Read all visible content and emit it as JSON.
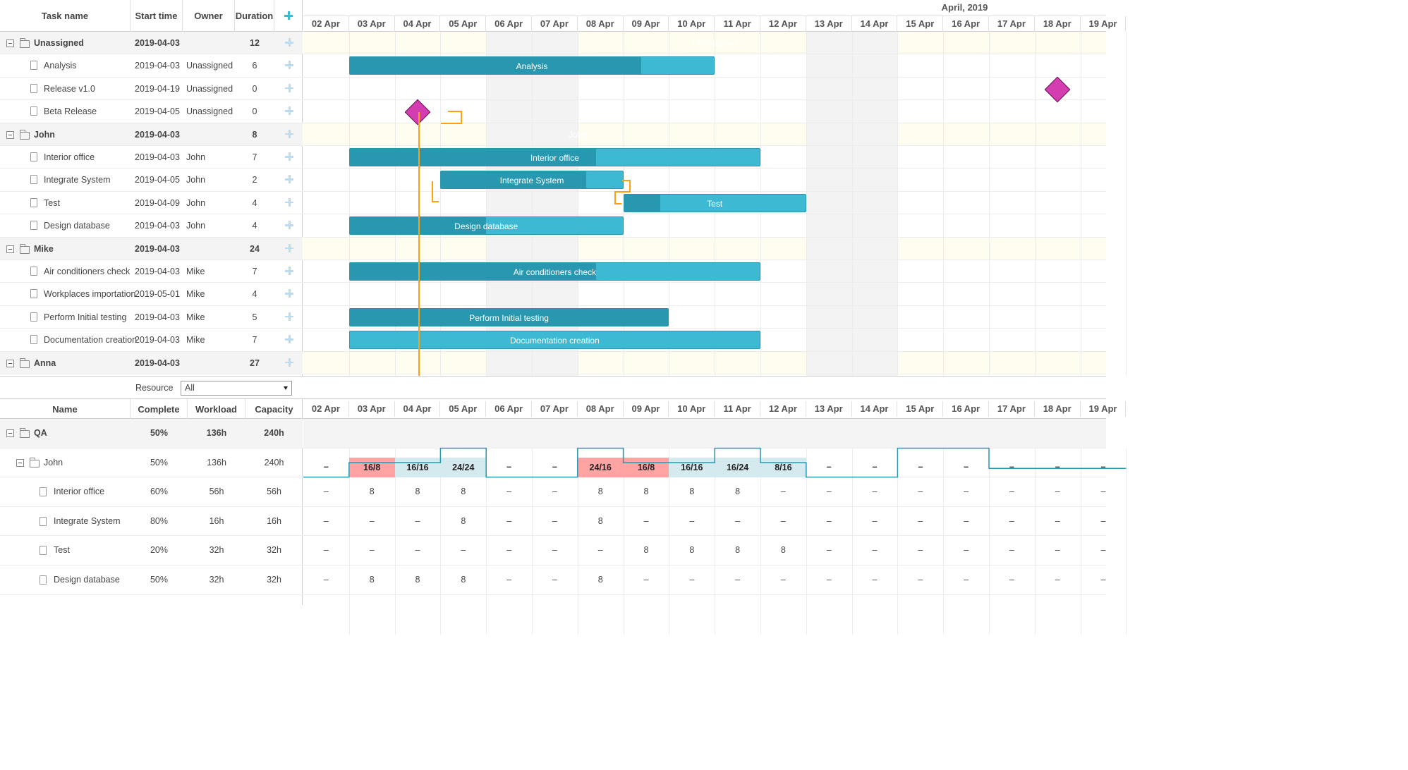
{
  "grid": {
    "columns": {
      "task_name": "Task name",
      "start_time": "Start time",
      "owner": "Owner",
      "duration": "Duration"
    },
    "rows": [
      {
        "type": "project",
        "name": "Unassigned",
        "start": "2019-04-03",
        "owner": "",
        "duration": "12"
      },
      {
        "type": "task",
        "name": "Analysis",
        "start": "2019-04-03",
        "owner": "Unassigned",
        "duration": "6"
      },
      {
        "type": "task",
        "name": "Release v1.0",
        "start": "2019-04-19",
        "owner": "Unassigned",
        "duration": "0"
      },
      {
        "type": "task",
        "name": "Beta Release",
        "start": "2019-04-05",
        "owner": "Unassigned",
        "duration": "0"
      },
      {
        "type": "project",
        "name": "John",
        "start": "2019-04-03",
        "owner": "",
        "duration": "8"
      },
      {
        "type": "task",
        "name": "Interior office",
        "start": "2019-04-03",
        "owner": "John",
        "duration": "7"
      },
      {
        "type": "task",
        "name": "Integrate System",
        "start": "2019-04-05",
        "owner": "John",
        "duration": "2"
      },
      {
        "type": "task",
        "name": "Test",
        "start": "2019-04-09",
        "owner": "John",
        "duration": "4"
      },
      {
        "type": "task",
        "name": "Design database",
        "start": "2019-04-03",
        "owner": "John",
        "duration": "4"
      },
      {
        "type": "project",
        "name": "Mike",
        "start": "2019-04-03",
        "owner": "",
        "duration": "24"
      },
      {
        "type": "task",
        "name": "Air conditioners check",
        "start": "2019-04-03",
        "owner": "Mike",
        "duration": "7"
      },
      {
        "type": "task",
        "name": "Workplaces importation",
        "start": "2019-05-01",
        "owner": "Mike",
        "duration": "4"
      },
      {
        "type": "task",
        "name": "Perform Initial testing",
        "start": "2019-04-03",
        "owner": "Mike",
        "duration": "5"
      },
      {
        "type": "task",
        "name": "Documentation creation",
        "start": "2019-04-03",
        "owner": "Mike",
        "duration": "7"
      },
      {
        "type": "project",
        "name": "Anna",
        "start": "2019-04-03",
        "owner": "",
        "duration": "27"
      }
    ]
  },
  "timeline": {
    "month_label": "April, 2019",
    "days": [
      "02 Apr",
      "03 Apr",
      "04 Apr",
      "05 Apr",
      "06 Apr",
      "07 Apr",
      "08 Apr",
      "09 Apr",
      "10 Apr",
      "11 Apr",
      "12 Apr",
      "13 Apr",
      "14 Apr",
      "15 Apr",
      "16 Apr",
      "17 Apr",
      "18 Apr",
      "19 Apr"
    ],
    "bars": [
      {
        "row": 0,
        "kind": "project",
        "label": "Unassigned",
        "start_day": 1,
        "days": 16,
        "progress": 0
      },
      {
        "row": 1,
        "kind": "task",
        "label": "Analysis",
        "start_day": 1,
        "days": 8,
        "progress": 0.8
      },
      {
        "row": 2,
        "kind": "milestone",
        "label": "",
        "start_day": 16.5
      },
      {
        "row": 3,
        "kind": "milestone",
        "label": "",
        "start_day": 2.5
      },
      {
        "row": 4,
        "kind": "project",
        "label": "John",
        "start_day": 1,
        "days": 10,
        "progress": 0
      },
      {
        "row": 5,
        "kind": "task",
        "label": "Interior office",
        "start_day": 1,
        "days": 9,
        "progress": 0.6
      },
      {
        "row": 6,
        "kind": "task",
        "label": "Integrate System",
        "start_day": 3,
        "days": 4,
        "progress": 0.8
      },
      {
        "row": 7,
        "kind": "task",
        "label": "Test",
        "start_day": 7,
        "days": 4,
        "progress": 0.2
      },
      {
        "row": 8,
        "kind": "task",
        "label": "Design database",
        "start_day": 1,
        "days": 6,
        "progress": 0.5
      },
      {
        "row": 9,
        "kind": "project",
        "label": "",
        "start_day": 1,
        "days": 18,
        "progress": 0
      },
      {
        "row": 10,
        "kind": "task",
        "label": "Air conditioners check",
        "start_day": 1,
        "days": 9,
        "progress": 0.6
      },
      {
        "row": 12,
        "kind": "task",
        "label": "Perform Initial testing",
        "start_day": 1,
        "days": 7,
        "progress": 1
      },
      {
        "row": 13,
        "kind": "task",
        "label": "Documentation creation",
        "start_day": 1,
        "days": 9,
        "progress": 0
      },
      {
        "row": 14,
        "kind": "project",
        "label": "",
        "start_day": 1,
        "days": 18,
        "progress": 0
      }
    ]
  },
  "resource_filter": {
    "label": "Resource",
    "selected": "All"
  },
  "resources": {
    "columns": {
      "name": "Name",
      "complete": "Complete",
      "workload": "Workload",
      "capacity": "Capacity"
    },
    "rows": [
      {
        "level": 0,
        "type": "group",
        "name": "QA",
        "complete": "50%",
        "workload": "136h",
        "capacity": "240h",
        "cells": [
          "",
          "",
          "",
          "",
          "",
          "",
          "",
          "",
          "",
          "",
          "",
          "",
          "",
          "",
          "",
          "",
          "",
          ""
        ]
      },
      {
        "level": 1,
        "type": "resource",
        "name": "John",
        "complete": "50%",
        "workload": "136h",
        "capacity": "240h",
        "cells": [
          "–",
          "16/8",
          "16/16",
          "24/24",
          "–",
          "–",
          "24/16",
          "16/8",
          "16/16",
          "16/24",
          "8/16",
          "–",
          "–",
          "–",
          "–",
          "–",
          "–",
          "–"
        ],
        "status": [
          "",
          "over",
          "ok",
          "ok",
          "",
          "",
          "over",
          "over",
          "ok",
          "ok",
          "ok",
          "",
          "",
          "",
          "",
          "",
          "",
          ""
        ]
      },
      {
        "level": 2,
        "type": "task",
        "name": "Interior office",
        "complete": "60%",
        "workload": "56h",
        "capacity": "56h",
        "cells": [
          "–",
          "8",
          "8",
          "8",
          "–",
          "–",
          "8",
          "8",
          "8",
          "8",
          "–",
          "–",
          "–",
          "–",
          "–",
          "–",
          "–",
          "–"
        ]
      },
      {
        "level": 2,
        "type": "task",
        "name": "Integrate System",
        "complete": "80%",
        "workload": "16h",
        "capacity": "16h",
        "cells": [
          "–",
          "–",
          "–",
          "8",
          "–",
          "–",
          "8",
          "–",
          "–",
          "–",
          "–",
          "–",
          "–",
          "–",
          "–",
          "–",
          "–",
          "–"
        ]
      },
      {
        "level": 2,
        "type": "task",
        "name": "Test",
        "complete": "20%",
        "workload": "32h",
        "capacity": "32h",
        "cells": [
          "–",
          "–",
          "–",
          "–",
          "–",
          "–",
          "–",
          "8",
          "8",
          "8",
          "8",
          "–",
          "–",
          "–",
          "–",
          "–",
          "–",
          "–"
        ]
      },
      {
        "level": 2,
        "type": "task",
        "name": "Design database",
        "complete": "50%",
        "workload": "32h",
        "capacity": "32h",
        "cells": [
          "–",
          "8",
          "8",
          "8",
          "–",
          "–",
          "8",
          "–",
          "–",
          "–",
          "–",
          "–",
          "–",
          "–",
          "–",
          "–",
          "–",
          "–"
        ]
      }
    ]
  },
  "colors": {
    "task_bar": "#3db9d3",
    "task_progress": "#2898b0",
    "project_bar": "#65c16f",
    "milestone": "#d33daf",
    "link": "#ffa011",
    "overload": "#ffa3a3",
    "ok": "#d5eaef"
  }
}
